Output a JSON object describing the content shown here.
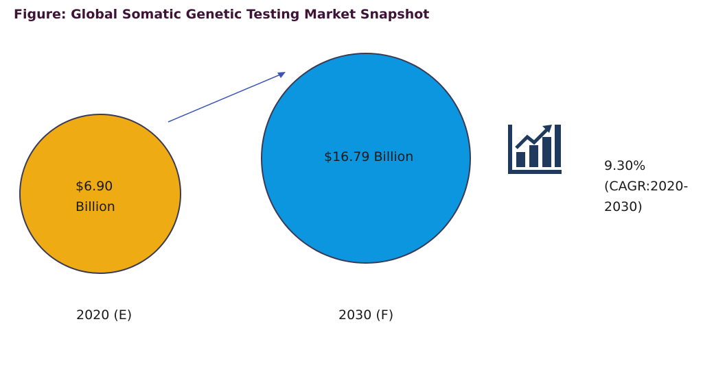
{
  "figure": {
    "title": "Figure: Global Somatic Genetic Testing Market Snapshot"
  },
  "colors": {
    "title": "#3d1436",
    "bubble_2020": "#efab14",
    "bubble_2030": "#0c96e0",
    "bubble_border": "#3a3a55",
    "arrow": "#3b55b5",
    "icon": "#1f3a5c"
  },
  "icons": {
    "growth": "bar-chart-growth-icon"
  },
  "chart_data": {
    "type": "bubble",
    "title": "Figure: Global Somatic Genetic Testing Market Snapshot",
    "categories": [
      "2020 (E)",
      "2030 (F)"
    ],
    "values": [
      6.9,
      16.79
    ],
    "unit": "Billion",
    "value_labels": [
      "$6.90 Billion",
      "$16.79 Billion"
    ],
    "cagr": {
      "value": "9.30%",
      "label": "(CAGR:2020-2030)"
    }
  }
}
